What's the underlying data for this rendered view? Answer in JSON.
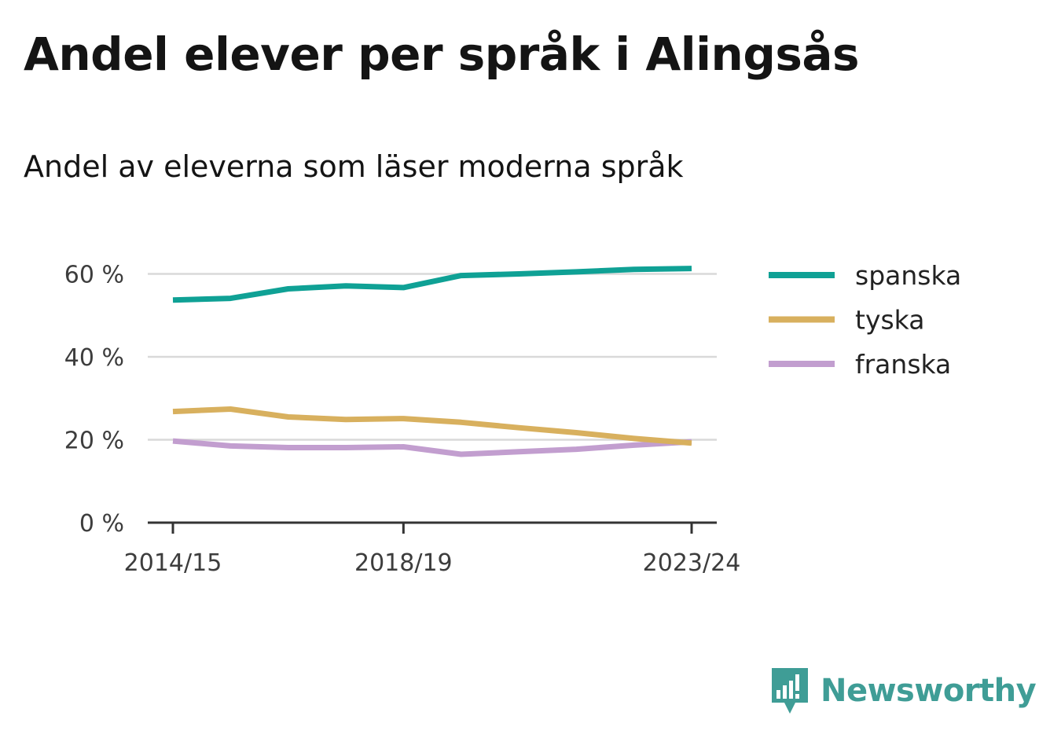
{
  "title": "Andel elever per språk i Alingsås",
  "subtitle": "Andel av eleverna som läser moderna språk",
  "brand": {
    "name": "Newsworthy",
    "logo_icon": "bar-chart-speech-bubble-icon",
    "color": "#3f9d96"
  },
  "chart_data": {
    "type": "line",
    "title": "",
    "xlabel": "",
    "ylabel": "",
    "x": [
      "2014/15",
      "2015/16",
      "2016/17",
      "2017/18",
      "2018/19",
      "2019/20",
      "2020/21",
      "2021/22",
      "2022/23",
      "2023/24"
    ],
    "x_tick_labels": [
      "2014/15",
      "2018/19",
      "2023/24"
    ],
    "ylim": [
      0,
      70
    ],
    "y_ticks": [
      0,
      20,
      40,
      60
    ],
    "y_tick_labels": [
      "0 %",
      "20 %",
      "40 %",
      "60 %"
    ],
    "grid": true,
    "legend_position": "right",
    "series": [
      {
        "name": "spanska",
        "color": "#0fa195",
        "values": [
          53.7,
          54.1,
          56.4,
          57.1,
          56.7,
          59.6,
          60.0,
          60.5,
          61.1,
          61.3
        ]
      },
      {
        "name": "tyska",
        "color": "#d8b05e",
        "values": [
          26.8,
          27.4,
          25.5,
          24.9,
          25.1,
          24.2,
          22.9,
          21.7,
          20.3,
          19.2
        ]
      },
      {
        "name": "franska",
        "color": "#c29ecf",
        "values": [
          19.7,
          18.5,
          18.1,
          18.1,
          18.3,
          16.5,
          17.1,
          17.7,
          18.7,
          19.5
        ]
      }
    ]
  }
}
